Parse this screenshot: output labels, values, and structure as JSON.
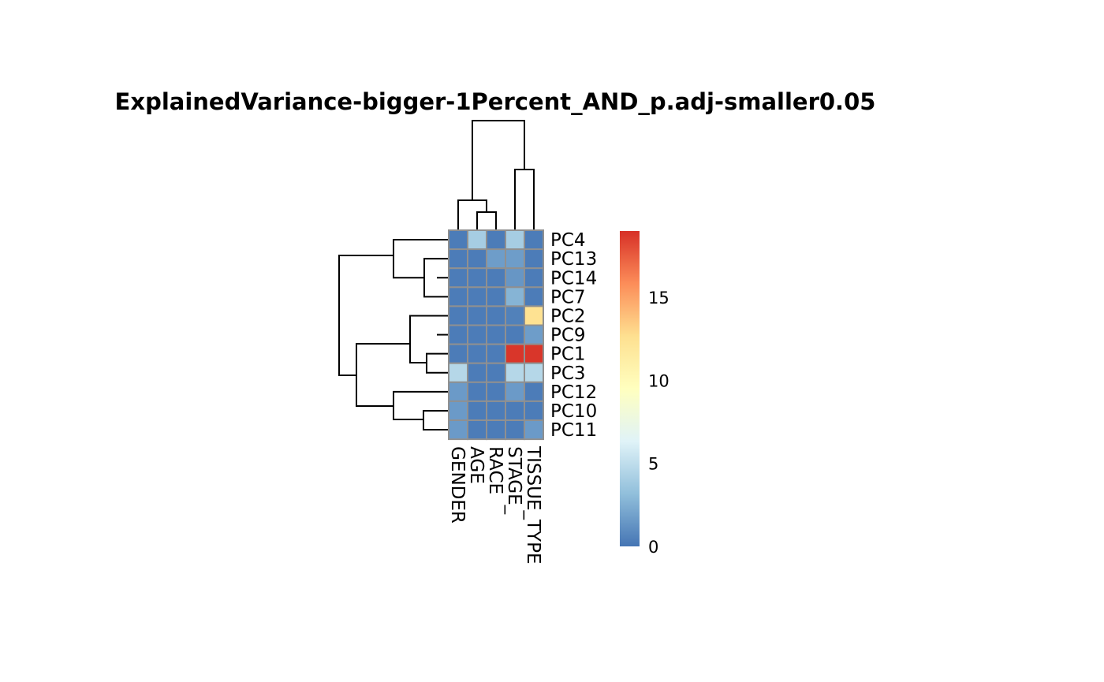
{
  "chart_data": {
    "type": "heatmap",
    "title": "ExplainedVariance-bigger-1Percent_AND_p.adj-smaller0.05",
    "rows": [
      "PC4",
      "PC13",
      "PC14",
      "PC7",
      "PC2",
      "PC9",
      "PC1",
      "PC3",
      "PC12",
      "PC10",
      "PC11"
    ],
    "columns": [
      "GENDER",
      "AGE",
      "RACE",
      "STAGE_",
      "TISSUE_TYPE"
    ],
    "values": [
      [
        0.3,
        4.0,
        0.3,
        4.0,
        0.3
      ],
      [
        0.3,
        0.3,
        1.7,
        1.7,
        0.3
      ],
      [
        0.3,
        0.3,
        0.3,
        1.4,
        0.3
      ],
      [
        0.3,
        0.3,
        0.3,
        2.7,
        0.3
      ],
      [
        0.3,
        0.3,
        0.3,
        0.5,
        12.5
      ],
      [
        0.3,
        0.3,
        0.3,
        0.3,
        1.7
      ],
      [
        0.3,
        0.3,
        0.3,
        18.8,
        18.8
      ],
      [
        4.6,
        0.3,
        0.3,
        4.6,
        4.6
      ],
      [
        1.6,
        0.3,
        0.3,
        1.6,
        0.3
      ],
      [
        1.6,
        0.3,
        0.3,
        0.3,
        0.3
      ],
      [
        1.6,
        0.3,
        0.3,
        0.3,
        1.6
      ]
    ],
    "color_scale": {
      "min": 0,
      "max": 19,
      "ticks": [
        0,
        5,
        10,
        15
      ],
      "colors": [
        "#4575b4",
        "#91bfdb",
        "#e0f3f8",
        "#ffffbf",
        "#fee090",
        "#fc8d59",
        "#d73027"
      ]
    },
    "row_dendrogram": true,
    "column_dendrogram": true,
    "legend_position": "right"
  }
}
